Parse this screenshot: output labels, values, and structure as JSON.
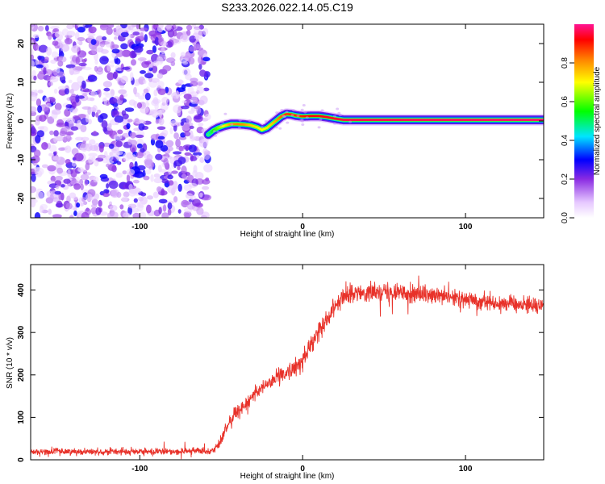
{
  "figure": {
    "title": "S233.2026.022.14.05.C19"
  },
  "chart_data": [
    {
      "type": "heatmap",
      "title": "S233.2026.022.14.05.C19",
      "xlabel": "Height of straight line (km)",
      "ylabel": "Frequency (Hz)",
      "xlim": [
        -167,
        148
      ],
      "ylim": [
        -25,
        25
      ],
      "xticks": [
        -100,
        0,
        100
      ],
      "xtick_labels": [
        "-100",
        "0",
        "100"
      ],
      "yticks": [
        20,
        10,
        0,
        -10,
        -20
      ],
      "ytick_labels": [
        "20",
        "10",
        "0",
        "-10",
        "-20"
      ],
      "noise_region_x": [
        -167,
        -58
      ],
      "noise_amplitude_range": [
        0.05,
        0.3
      ],
      "ridge": {
        "x": [
          -58,
          -55,
          -52,
          -48,
          -44,
          -40,
          -36,
          -32,
          -28,
          -25,
          -22,
          -19,
          -16,
          -13,
          -10,
          -7,
          -4,
          0,
          5,
          10,
          15,
          20,
          25,
          148
        ],
        "frequency": [
          -3.5,
          -2.5,
          -1.8,
          -1.2,
          -0.8,
          -0.8,
          -0.9,
          -1.1,
          -1.6,
          -2.3,
          -1.8,
          -0.8,
          0.2,
          1.2,
          1.8,
          1.7,
          1.4,
          1.2,
          1.3,
          1.3,
          1.0,
          0.6,
          0.3,
          0.3
        ],
        "amplitude": [
          0.45,
          0.55,
          0.62,
          0.72,
          0.8,
          0.82,
          0.8,
          0.75,
          0.72,
          0.7,
          0.72,
          0.75,
          0.8,
          0.85,
          0.88,
          0.88,
          0.88,
          0.9,
          0.92,
          0.93,
          0.94,
          0.95,
          0.96,
          0.98
        ]
      },
      "colorbar": {
        "label": "Normalized spectral amplitude",
        "range": [
          0,
          1
        ],
        "ticks": [
          0.0,
          0.2,
          0.4,
          0.6,
          0.8
        ],
        "tick_labels": [
          "0.0",
          "0.2",
          "0.4",
          "0.6",
          "0.8"
        ],
        "colormap_stops": [
          {
            "v": 0.0,
            "color": "#ffffff"
          },
          {
            "v": 0.08,
            "color": "#e6c8ff"
          },
          {
            "v": 0.2,
            "color": "#8a2be2"
          },
          {
            "v": 0.3,
            "color": "#0000ff"
          },
          {
            "v": 0.42,
            "color": "#00e5ff"
          },
          {
            "v": 0.55,
            "color": "#00ff00"
          },
          {
            "v": 0.7,
            "color": "#ffff00"
          },
          {
            "v": 0.82,
            "color": "#ff8000"
          },
          {
            "v": 0.92,
            "color": "#ff0000"
          },
          {
            "v": 1.0,
            "color": "#ff1493"
          }
        ]
      }
    },
    {
      "type": "line",
      "xlabel": "Height of straight line (km)",
      "ylabel": "SNR (10 * v/v)",
      "xlim": [
        -167,
        148
      ],
      "ylim": [
        0,
        460
      ],
      "xticks": [
        -100,
        0,
        100
      ],
      "xtick_labels": [
        "-100",
        "0",
        "100"
      ],
      "yticks": [
        0,
        100,
        200,
        300,
        400
      ],
      "ytick_labels": [
        "0",
        "100",
        "200",
        "300",
        "400"
      ],
      "series": [
        {
          "name": "SNR",
          "color": "#e8322a",
          "x": [
            -167,
            -150,
            -130,
            -110,
            -90,
            -70,
            -55,
            -50,
            -45,
            -40,
            -35,
            -30,
            -25,
            -20,
            -15,
            -10,
            -5,
            0,
            5,
            10,
            15,
            20,
            25,
            30,
            40,
            50,
            60,
            70,
            80,
            90,
            100,
            110,
            120,
            130,
            140,
            148
          ],
          "mean": [
            18,
            20,
            19,
            19,
            19,
            20,
            22,
            45,
            90,
            115,
            130,
            150,
            170,
            185,
            195,
            205,
            215,
            235,
            270,
            305,
            335,
            365,
            385,
            390,
            395,
            398,
            395,
            390,
            385,
            382,
            378,
            374,
            370,
            368,
            365,
            365
          ],
          "noise": [
            8,
            8,
            8,
            8,
            8,
            8,
            8,
            15,
            18,
            18,
            20,
            20,
            20,
            20,
            20,
            20,
            22,
            22,
            22,
            22,
            22,
            20,
            20,
            20,
            20,
            22,
            22,
            22,
            20,
            20,
            20,
            20,
            20,
            20,
            20,
            20
          ]
        }
      ]
    }
  ]
}
